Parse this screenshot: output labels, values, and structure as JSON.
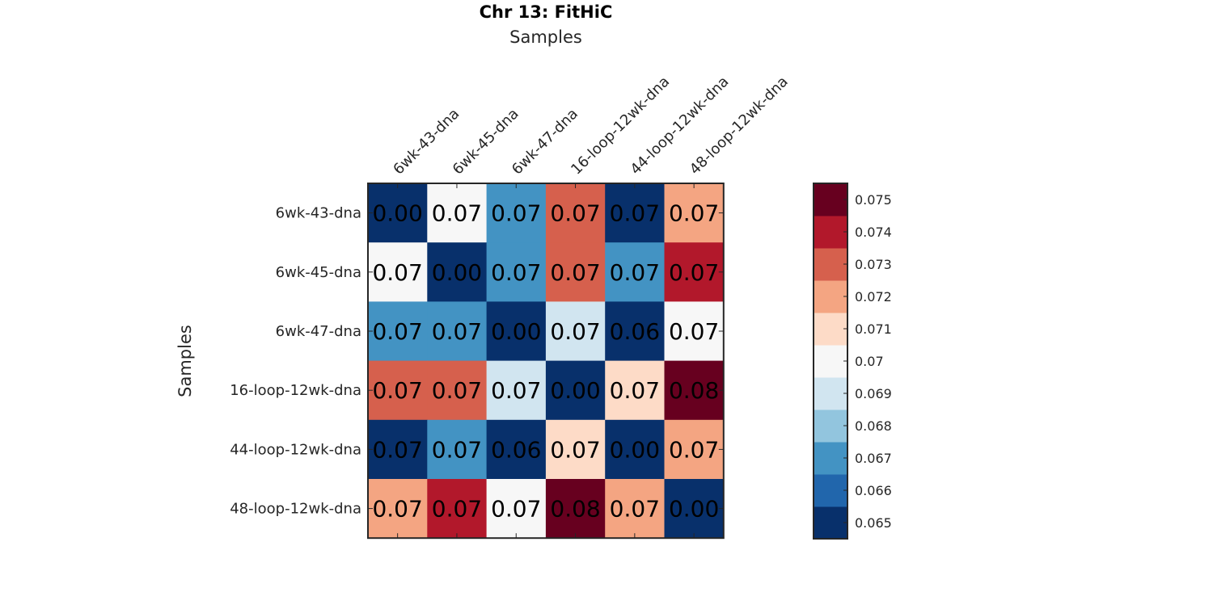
{
  "chart_data": {
    "type": "heatmap",
    "title": "Chr 13: FitHiC",
    "xlabel": "Samples",
    "ylabel": "Samples",
    "x_categories": [
      "6wk-43-dna",
      "6wk-45-dna",
      "6wk-47-dna",
      "16-loop-12wk-dna",
      "44-loop-12wk-dna",
      "48-loop-12wk-dna"
    ],
    "y_categories": [
      "6wk-43-dna",
      "6wk-45-dna",
      "6wk-47-dna",
      "16-loop-12wk-dna",
      "44-loop-12wk-dna",
      "48-loop-12wk-dna"
    ],
    "values": [
      [
        0.0,
        0.07,
        0.0671,
        0.073,
        0.065,
        0.072
      ],
      [
        0.07,
        0.0,
        0.0671,
        0.073,
        0.0671,
        0.074
      ],
      [
        0.0671,
        0.0671,
        0.0,
        0.069,
        0.064,
        0.07
      ],
      [
        0.073,
        0.073,
        0.069,
        0.0,
        0.071,
        0.0752
      ],
      [
        0.065,
        0.0671,
        0.064,
        0.071,
        0.0,
        0.072
      ],
      [
        0.072,
        0.074,
        0.07,
        0.0752,
        0.072,
        0.0
      ]
    ],
    "cell_labels": [
      [
        "0.00",
        "0.07",
        "0.07",
        "0.07",
        "0.07",
        "0.07"
      ],
      [
        "0.07",
        "0.00",
        "0.07",
        "0.07",
        "0.07",
        "0.07"
      ],
      [
        "0.07",
        "0.07",
        "0.00",
        "0.07",
        "0.06",
        "0.07"
      ],
      [
        "0.07",
        "0.07",
        "0.07",
        "0.00",
        "0.07",
        "0.08"
      ],
      [
        "0.07",
        "0.07",
        "0.06",
        "0.07",
        "0.00",
        "0.07"
      ],
      [
        "0.07",
        "0.07",
        "0.07",
        "0.08",
        "0.07",
        "0.00"
      ]
    ],
    "colorbar": {
      "range": [
        0.0645,
        0.0755
      ],
      "ticks": [
        "0.065",
        "0.066",
        "0.067",
        "0.068",
        "0.069",
        "0.07",
        "0.071",
        "0.072",
        "0.073",
        "0.074",
        "0.075"
      ],
      "tick_values": [
        0.065,
        0.066,
        0.067,
        0.068,
        0.069,
        0.07,
        0.071,
        0.072,
        0.073,
        0.074,
        0.075
      ],
      "colors": [
        "#08306b",
        "#2166ac",
        "#4393c3",
        "#92c5de",
        "#d1e5f0",
        "#f7f7f7",
        "#fddbc7",
        "#f4a582",
        "#d6604d",
        "#b2182b",
        "#67001f"
      ],
      "placement": "right"
    }
  }
}
